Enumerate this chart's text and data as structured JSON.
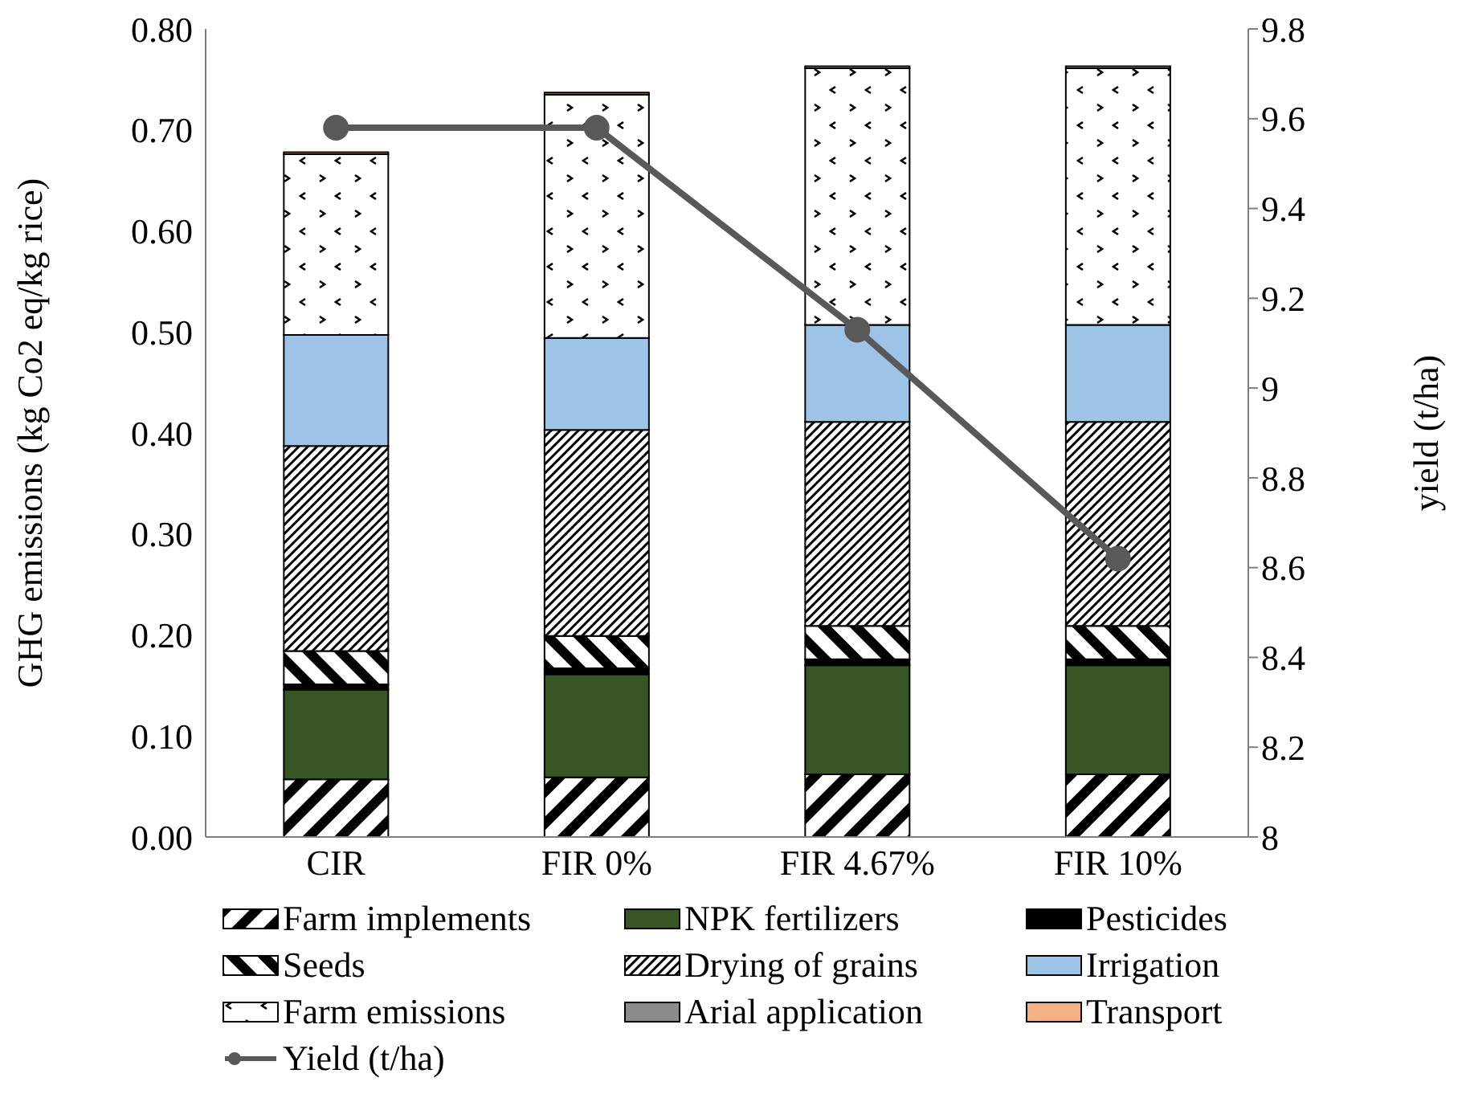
{
  "chart_data": {
    "type": "bar",
    "stacked": true,
    "ylabel": "GHG emissions (kg Co2 eq/kg rice)",
    "y2label": "yield (t/ha)",
    "categories": [
      "CIR",
      "FIR 0%",
      "FIR 4.67%",
      "FIR 10%"
    ],
    "series": [
      {
        "name": "Farm implements",
        "color": "#000000",
        "values": [
          0.057,
          0.059,
          0.062,
          0.062
        ]
      },
      {
        "name": "NPK fertilizers",
        "color": "#375623",
        "values": [
          0.089,
          0.102,
          0.108,
          0.108
        ]
      },
      {
        "name": "Pesticides",
        "color": "#000000",
        "values": [
          0.005,
          0.006,
          0.006,
          0.006
        ]
      },
      {
        "name": "Seeds",
        "color": "#000000",
        "values": [
          0.033,
          0.032,
          0.033,
          0.033
        ]
      },
      {
        "name": "Drying of grains",
        "color": "#000000",
        "values": [
          0.203,
          0.204,
          0.202,
          0.202
        ]
      },
      {
        "name": "Irrigation",
        "color": "#9dc3e6",
        "values": [
          0.11,
          0.091,
          0.096,
          0.096
        ]
      },
      {
        "name": "Farm emissions",
        "color": "#000000",
        "values": [
          0.179,
          0.241,
          0.254,
          0.254
        ]
      },
      {
        "name": "Arial application",
        "color": "#8c8c8c",
        "values": [
          0,
          0,
          0,
          0
        ]
      },
      {
        "name": "Transport",
        "color": "#f4b183",
        "values": [
          0.002,
          0.002,
          0.002,
          0.002
        ]
      },
      {
        "name": "Yield (t/ha)",
        "type": "line",
        "axis": "y2",
        "color": "#595959",
        "marker": "circle",
        "values": [
          9.58,
          9.58,
          9.13,
          8.62
        ]
      }
    ],
    "ylim": [
      0,
      0.8
    ],
    "yticks": [
      {
        "value": 0,
        "label": "0.00"
      },
      {
        "value": 0.1,
        "label": "0.10"
      },
      {
        "value": 0.2,
        "label": "0.20"
      },
      {
        "value": 0.3,
        "label": "0.30"
      },
      {
        "value": 0.4,
        "label": "0.40"
      },
      {
        "value": 0.5,
        "label": "0.50"
      },
      {
        "value": 0.6,
        "label": "0.60"
      },
      {
        "value": 0.7,
        "label": "0.70"
      },
      {
        "value": 0.8,
        "label": "0.80"
      }
    ],
    "y2lim": [
      8,
      9.8
    ],
    "y2ticks": [
      8,
      8.2,
      8.4,
      8.6,
      8.8,
      9,
      9.2,
      9.4,
      9.6,
      9.8
    ],
    "grid": false,
    "legend": "bottom"
  }
}
